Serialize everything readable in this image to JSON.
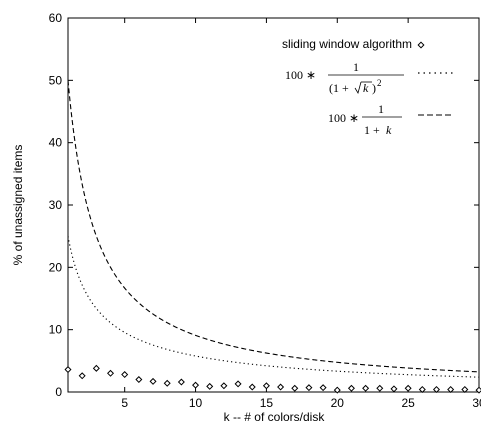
{
  "chart_data": {
    "type": "line",
    "xlabel": "k -- # of colors/disk",
    "ylabel": "% of unassigned items",
    "xlim": [
      1,
      30
    ],
    "ylim": [
      0,
      60
    ],
    "xticks": [
      5,
      10,
      15,
      20,
      25,
      30
    ],
    "yticks": [
      0,
      10,
      20,
      30,
      40,
      50,
      60
    ],
    "grid": false,
    "legend_position": "top-right",
    "series": [
      {
        "name": "sliding window algorithm",
        "style": "diamond-markers",
        "x": [
          1,
          2,
          3,
          4,
          5,
          6,
          7,
          8,
          9,
          10,
          11,
          12,
          13,
          14,
          15,
          16,
          17,
          18,
          19,
          20,
          21,
          22,
          23,
          24,
          25,
          26,
          27,
          28,
          29,
          30
        ],
        "values": [
          3.6,
          2.6,
          3.8,
          3.0,
          2.8,
          2.0,
          1.7,
          1.4,
          1.6,
          1.1,
          0.9,
          1.0,
          1.3,
          0.8,
          1.0,
          0.8,
          0.6,
          0.7,
          0.7,
          0.3,
          0.6,
          0.6,
          0.6,
          0.5,
          0.6,
          0.4,
          0.4,
          0.4,
          0.4,
          0.3
        ]
      },
      {
        "name": "100 * 1/(1 + sqrt(k))^2",
        "style": "dotted",
        "formula": "100/(1+sqrt(k))^2",
        "x_range": [
          1,
          30
        ]
      },
      {
        "name": "100 * 1/(1 + k)",
        "style": "dashed",
        "formula": "100/(1+k)",
        "x_range": [
          1,
          30
        ]
      }
    ]
  }
}
